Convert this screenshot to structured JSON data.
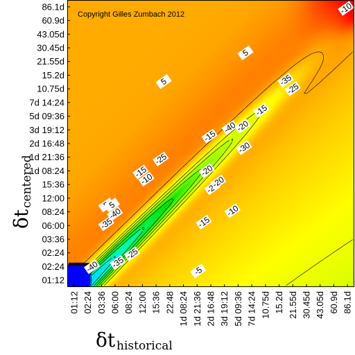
{
  "chart_data": {
    "type": "heatmap",
    "title": "",
    "annotation": "Copyright Gilles Zumbach 2012",
    "xlabel": {
      "symbol": "δt",
      "subscript": "historical"
    },
    "ylabel": {
      "symbol": "δt",
      "subscript": "centered"
    },
    "x_ticks": [
      "01:12",
      "02:24",
      "03:36",
      "06:00",
      "08:24",
      "12:00",
      "15:36",
      "22:48",
      "1d 08:24",
      "1d 21:36",
      "2d 16:48",
      "3d 19:12",
      "5d 09:36",
      "7d 14:24",
      "10.75d",
      "15.2d",
      "21.55d",
      "30.45d",
      "43.05d",
      "60.9d",
      "86.1d"
    ],
    "y_ticks": [
      "01:12",
      "02:24",
      "02:24",
      "03:36",
      "06:00",
      "08:24",
      "12:00",
      "15:36",
      "1d 08:24",
      "1d 21:36",
      "2d 16:48",
      "3d 19:12",
      "5d 09:36",
      "7d 14:24",
      "10.75d",
      "15.2d",
      "21.55d",
      "30.45d",
      "43.05d",
      "60.9d",
      "86.1d"
    ],
    "contour_labels": [
      "-10",
      "5",
      "5",
      "-35",
      "-25",
      "5",
      "-15",
      "-20",
      "-40",
      "-15",
      "-25",
      "-20",
      "-30",
      "-15",
      "-10",
      "-25",
      "5",
      "-40",
      "-35",
      "-30",
      "-20",
      "-10",
      "-40",
      "-35",
      "-25",
      "-15",
      "-5"
    ],
    "colormap": [
      "#0000ff",
      "#0070ff",
      "#00e0ff",
      "#00ffa0",
      "#00e000",
      "#80ff00",
      "#d0ff00",
      "#ffff00",
      "#ffc000",
      "#ff8000",
      "#ff0000"
    ],
    "value_range": [
      -45,
      15
    ]
  }
}
